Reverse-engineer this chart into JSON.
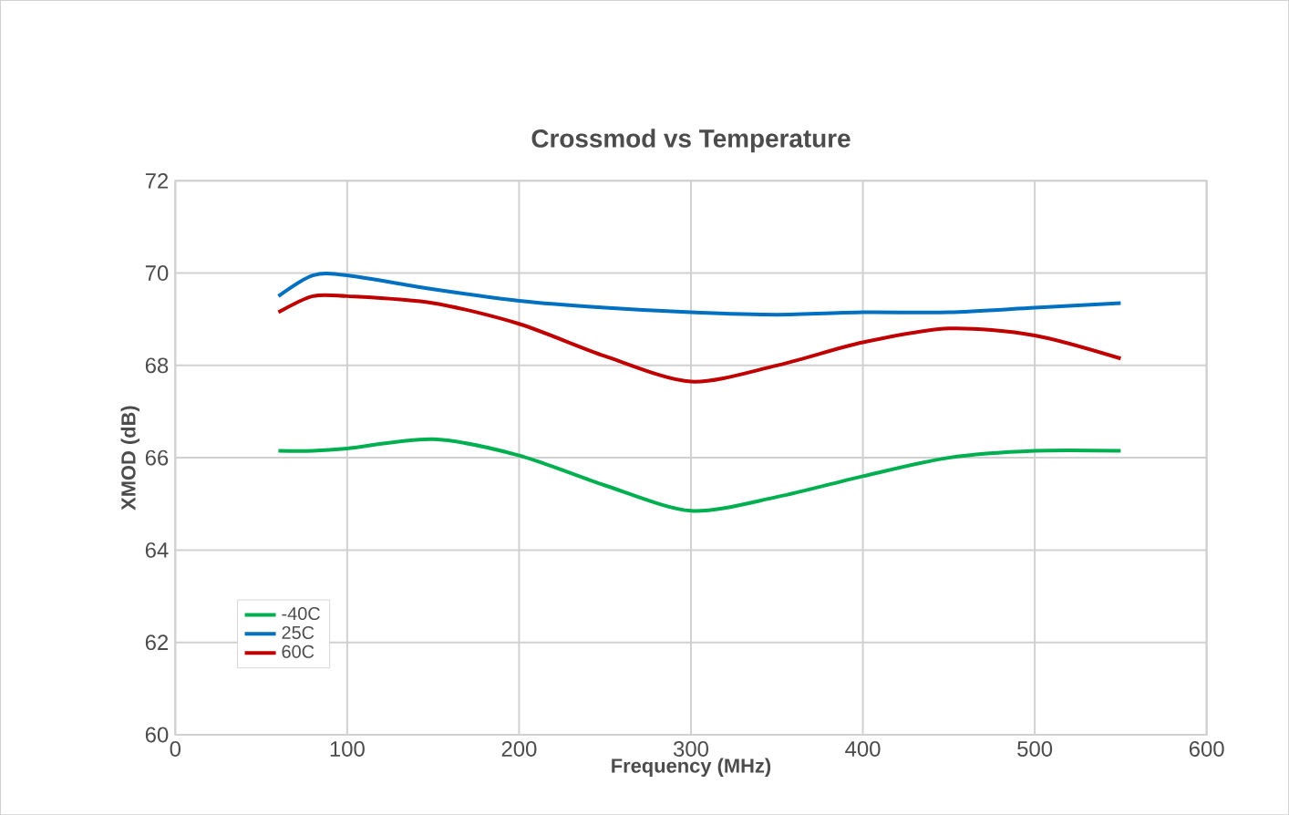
{
  "chart_data": {
    "type": "line",
    "title": "Crossmod vs Temperature",
    "xlabel": "Frequency (MHz)",
    "ylabel": "XMOD (dB)",
    "x": [
      60,
      80,
      100,
      150,
      200,
      250,
      300,
      350,
      400,
      450,
      500,
      550
    ],
    "series": [
      {
        "name": "-40C",
        "color": "#00b050",
        "values": [
          66.15,
          66.15,
          66.2,
          66.4,
          66.05,
          65.4,
          64.85,
          65.15,
          65.6,
          66.0,
          66.15,
          66.15
        ]
      },
      {
        "name": "25C",
        "color": "#0070c0",
        "values": [
          69.5,
          69.95,
          69.95,
          69.65,
          69.4,
          69.25,
          69.15,
          69.1,
          69.15,
          69.15,
          69.25,
          69.35
        ]
      },
      {
        "name": "60C",
        "color": "#c00000",
        "values": [
          69.15,
          69.5,
          69.5,
          69.35,
          68.9,
          68.2,
          67.65,
          68.0,
          68.5,
          68.8,
          68.65,
          68.15
        ]
      }
    ],
    "xlim": [
      0,
      600
    ],
    "xticks": [
      0,
      100,
      200,
      300,
      400,
      500,
      600
    ],
    "ylim": [
      60,
      72
    ],
    "yticks": [
      60,
      62,
      64,
      66,
      68,
      70,
      72
    ],
    "grid": true,
    "legend": "bottom left",
    "marker": "none",
    "line_style": "solid"
  }
}
